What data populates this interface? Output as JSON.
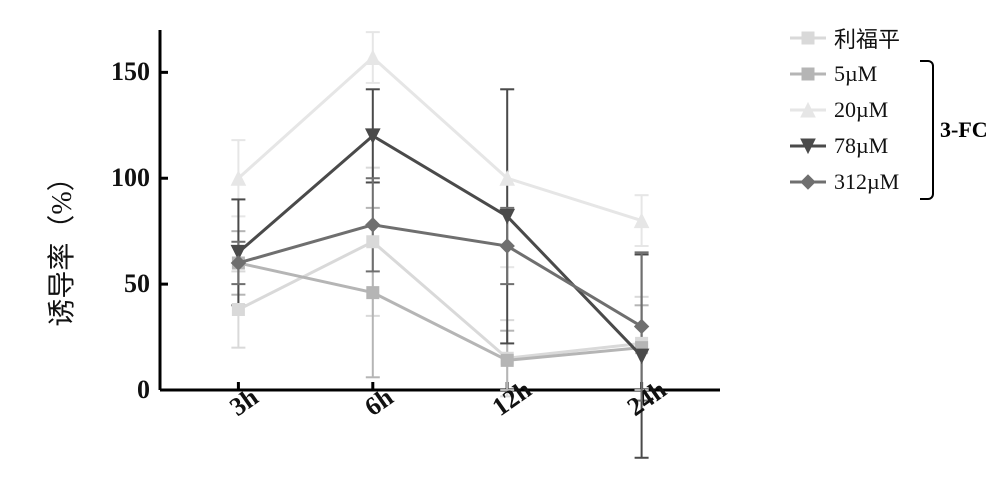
{
  "chart": {
    "type": "line",
    "background_color": "#ffffff",
    "y_axis": {
      "label": "诱导率（%）",
      "label_fontsize": 28,
      "min": 0,
      "max": 170,
      "visible_max": 150,
      "ticks": [
        0,
        50,
        100,
        150
      ],
      "tick_inner_len": 8,
      "tick_fontsize": 26,
      "axis_color": "#000000",
      "axis_width": 3
    },
    "x_axis": {
      "categories": [
        "3h",
        "6h",
        "12h",
        "24h"
      ],
      "tick_fontsize": 26,
      "tick_rotation_deg": -35,
      "axis_color": "#000000",
      "axis_width": 3,
      "tick_inner_len": 8
    },
    "error_bar": {
      "cap_width": 14,
      "line_width": 2
    },
    "series": [
      {
        "id": "rifampicin",
        "label": "利福平",
        "color": "#d9d9d9",
        "marker": "square",
        "marker_size": 12,
        "line_width": 3,
        "y": [
          38,
          70,
          15,
          22
        ],
        "err": [
          18,
          35,
          18,
          22
        ]
      },
      {
        "id": "c5",
        "label": "5µM",
        "color": "#b5b5b5",
        "marker": "square",
        "marker_size": 12,
        "line_width": 3,
        "y": [
          60,
          46,
          14,
          20
        ],
        "err": [
          15,
          40,
          14,
          20
        ]
      },
      {
        "id": "c20",
        "label": "20µM",
        "color": "#e6e6e6",
        "marker": "triangle-up",
        "marker_size": 14,
        "line_width": 3,
        "y": [
          100,
          157,
          100,
          80
        ],
        "err": [
          18,
          12,
          42,
          12
        ]
      },
      {
        "id": "c78",
        "label": "78µM",
        "color": "#4a4a4a",
        "marker": "triangle-down",
        "marker_size": 14,
        "line_width": 3,
        "y": [
          65,
          120,
          82,
          16
        ],
        "err": [
          25,
          22,
          60,
          48
        ]
      },
      {
        "id": "c312",
        "label": "312µM",
        "color": "#6f6f6f",
        "marker": "diamond",
        "marker_size": 14,
        "line_width": 3,
        "y": [
          60,
          78,
          68,
          30
        ],
        "err": [
          10,
          22,
          18,
          35
        ]
      }
    ],
    "legend": {
      "position": "right",
      "item_height": 36,
      "fontsize": 22,
      "bracket": {
        "start_item_index": 1,
        "end_item_index": 4,
        "label": "3-FC",
        "label_fontsize": 22,
        "color": "#000000"
      }
    }
  }
}
